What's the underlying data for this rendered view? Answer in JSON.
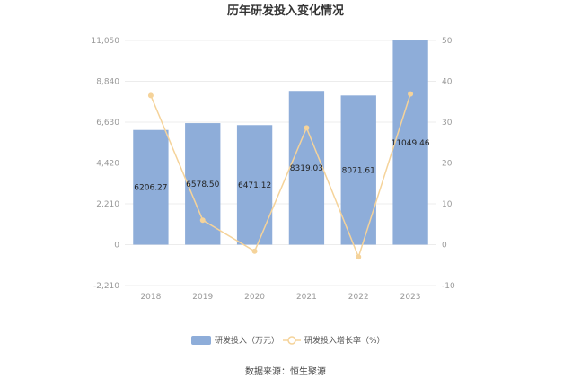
{
  "chart_data": {
    "type": "bar",
    "title": "历年研发投入变化情况",
    "categories": [
      "2018",
      "2019",
      "2020",
      "2021",
      "2022",
      "2023"
    ],
    "series": [
      {
        "name": "研发投入（万元）",
        "type": "bar",
        "axis": "left",
        "values": [
          6206.27,
          6578.5,
          6471.12,
          8319.03,
          8071.61,
          11049.46
        ],
        "value_labels": [
          "6206.27",
          "6578.50",
          "6471.12",
          "8319.03",
          "8071.61",
          "11049.46"
        ],
        "color": "#8eadd9"
      },
      {
        "name": "研发投入增长率（%）",
        "type": "line",
        "axis": "right",
        "values": [
          36.5,
          6.0,
          -1.6,
          28.6,
          -3.0,
          36.9
        ],
        "color": "#f5d39a"
      }
    ],
    "y_left": {
      "min": -2210,
      "max": 11050,
      "ticks": [
        "11,050",
        "8,840",
        "6,630",
        "4,420",
        "2,210",
        "0",
        "-2,210"
      ],
      "tick_values": [
        11050,
        8840,
        6630,
        4420,
        2210,
        0,
        -2210
      ]
    },
    "y_right": {
      "min": -10,
      "max": 50,
      "ticks": [
        "50",
        "40",
        "30",
        "20",
        "10",
        "0",
        "-10"
      ],
      "tick_values": [
        50,
        40,
        30,
        20,
        10,
        0,
        -10
      ]
    },
    "grid": true,
    "legend_position": "bottom",
    "source": "数据来源：恒生聚源"
  }
}
